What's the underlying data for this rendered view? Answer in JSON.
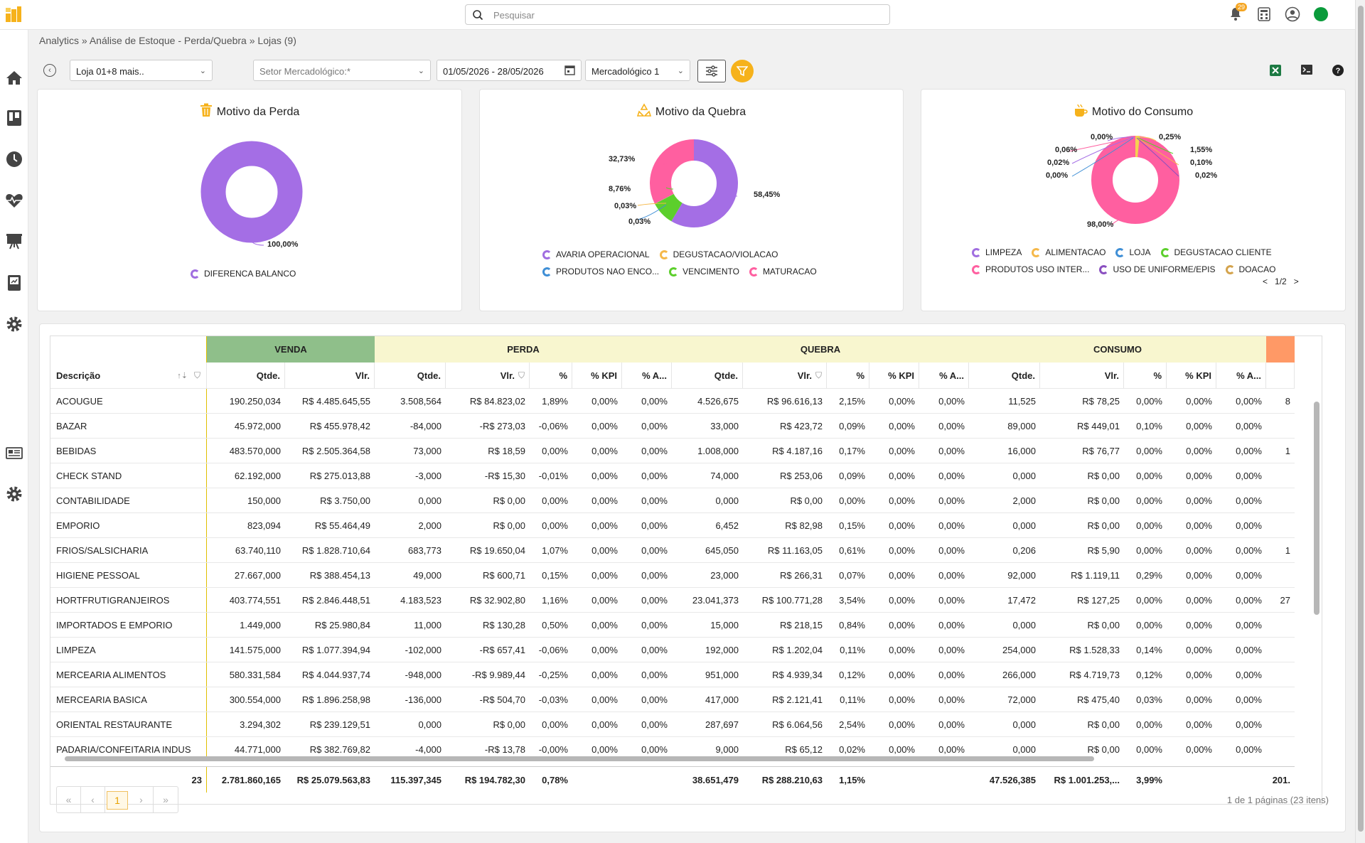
{
  "search": {
    "placeholder": "Pesquisar"
  },
  "notifications": {
    "count": "29"
  },
  "breadcrumb": "Analytics » Análise de Estoque - Perda/Quebra » Lojas (9)",
  "toolbar": {
    "store_filter": "Loja 01+8 mais..",
    "sector_filter": "Setor Mercadológico:*",
    "date_range": "01/05/2026 - 28/05/2026",
    "level_filter": "Mercadológico 1"
  },
  "cards": [
    {
      "title": "Motivo da Perda",
      "icon": "trash-icon",
      "legend": [
        {
          "label": "DIFERENCA BALANCO",
          "color": "#a06ee0"
        }
      ],
      "labels": [
        "100,00%"
      ]
    },
    {
      "title": "Motivo da Quebra",
      "icon": "recycle-icon",
      "legend": [
        {
          "label": "AVARIA OPERACIONAL",
          "color": "#a06ee0"
        },
        {
          "label": "DEGUSTACAO/VIOLACAO",
          "color": "#f5b84a"
        },
        {
          "label": "PRODUTOS NAO ENCO...",
          "color": "#3f8fd6"
        },
        {
          "label": "VENCIMENTO",
          "color": "#5ccf2c"
        },
        {
          "label": "MATURACAO",
          "color": "#ff5fa0"
        }
      ],
      "labels": [
        "32,73%",
        "58,45%",
        "8,76%",
        "0,03%",
        "0,03%"
      ]
    },
    {
      "title": "Motivo do Consumo",
      "icon": "coffee-icon",
      "legend": [
        {
          "label": "LIMPEZA",
          "color": "#a06ee0"
        },
        {
          "label": "ALIMENTACAO",
          "color": "#f5b84a"
        },
        {
          "label": "LOJA",
          "color": "#3f8fd6"
        },
        {
          "label": "DEGUSTACAO CLIENTE",
          "color": "#5ccf2c"
        },
        {
          "label": "PRODUTOS USO INTER...",
          "color": "#ff5fa0"
        },
        {
          "label": "USO DE UNIFORME/EPIS",
          "color": "#8a4fc0"
        },
        {
          "label": "DOACAO",
          "color": "#d4a34c"
        }
      ],
      "labels": [
        "0,00%",
        "0,25%",
        "0,06%",
        "1,55%",
        "0,02%",
        "0,10%",
        "0,00%",
        "0,02%",
        "98,00%"
      ],
      "legend_page": "1/2"
    }
  ],
  "table": {
    "groups": [
      "VENDA",
      "PERDA",
      "QUEBRA",
      "CONSUMO"
    ],
    "desc_header": "Descrição",
    "sub_headers": [
      "Qtde.",
      "Vlr.",
      "Qtde.",
      "Vlr.",
      "%",
      "% KPI",
      "% A...",
      "Qtde.",
      "Vlr.",
      "%",
      "% KPI",
      "% A...",
      "Qtde.",
      "Vlr.",
      "%",
      "% KPI",
      "% A...",
      ""
    ],
    "rows": [
      [
        "ACOUGUE",
        "190.250,034",
        "R$ 4.485.645,55",
        "3.508,564",
        "R$ 84.823,02",
        "1,89%",
        "0,00%",
        "0,00%",
        "4.526,675",
        "R$ 96.616,13",
        "2,15%",
        "0,00%",
        "0,00%",
        "11,525",
        "R$ 78,25",
        "0,00%",
        "0,00%",
        "0,00%",
        "8"
      ],
      [
        "BAZAR",
        "45.972,000",
        "R$ 455.978,42",
        "-84,000",
        "-R$ 273,03",
        "-0,06%",
        "0,00%",
        "0,00%",
        "33,000",
        "R$ 423,72",
        "0,09%",
        "0,00%",
        "0,00%",
        "89,000",
        "R$ 449,01",
        "0,10%",
        "0,00%",
        "0,00%",
        ""
      ],
      [
        "BEBIDAS",
        "483.570,000",
        "R$ 2.505.364,58",
        "73,000",
        "R$ 18,59",
        "0,00%",
        "0,00%",
        "0,00%",
        "1.008,000",
        "R$ 4.187,16",
        "0,17%",
        "0,00%",
        "0,00%",
        "16,000",
        "R$ 76,77",
        "0,00%",
        "0,00%",
        "0,00%",
        "1"
      ],
      [
        "CHECK STAND",
        "62.192,000",
        "R$ 275.013,88",
        "-3,000",
        "-R$ 15,30",
        "-0,01%",
        "0,00%",
        "0,00%",
        "74,000",
        "R$ 253,06",
        "0,09%",
        "0,00%",
        "0,00%",
        "0,000",
        "R$ 0,00",
        "0,00%",
        "0,00%",
        "0,00%",
        ""
      ],
      [
        "CONTABILIDADE",
        "150,000",
        "R$ 3.750,00",
        "0,000",
        "R$ 0,00",
        "0,00%",
        "0,00%",
        "0,00%",
        "0,000",
        "R$ 0,00",
        "0,00%",
        "0,00%",
        "0,00%",
        "2,000",
        "R$ 0,00",
        "0,00%",
        "0,00%",
        "0,00%",
        ""
      ],
      [
        "EMPORIO",
        "823,094",
        "R$ 55.464,49",
        "2,000",
        "R$ 0,00",
        "0,00%",
        "0,00%",
        "0,00%",
        "6,452",
        "R$ 82,98",
        "0,15%",
        "0,00%",
        "0,00%",
        "0,000",
        "R$ 0,00",
        "0,00%",
        "0,00%",
        "0,00%",
        ""
      ],
      [
        "FRIOS/SALSICHARIA",
        "63.740,110",
        "R$ 1.828.710,64",
        "683,773",
        "R$ 19.650,04",
        "1,07%",
        "0,00%",
        "0,00%",
        "645,050",
        "R$ 11.163,05",
        "0,61%",
        "0,00%",
        "0,00%",
        "0,206",
        "R$ 5,90",
        "0,00%",
        "0,00%",
        "0,00%",
        "1"
      ],
      [
        "HIGIENE PESSOAL",
        "27.667,000",
        "R$ 388.454,13",
        "49,000",
        "R$ 600,71",
        "0,15%",
        "0,00%",
        "0,00%",
        "23,000",
        "R$ 266,31",
        "0,07%",
        "0,00%",
        "0,00%",
        "92,000",
        "R$ 1.119,11",
        "0,29%",
        "0,00%",
        "0,00%",
        ""
      ],
      [
        "HORTFRUTIGRANJEIROS",
        "403.774,551",
        "R$ 2.846.448,51",
        "4.183,523",
        "R$ 32.902,80",
        "1,16%",
        "0,00%",
        "0,00%",
        "23.041,373",
        "R$ 100.771,28",
        "3,54%",
        "0,00%",
        "0,00%",
        "17,472",
        "R$ 127,25",
        "0,00%",
        "0,00%",
        "0,00%",
        "27"
      ],
      [
        "IMPORTADOS E EMPORIO",
        "1.449,000",
        "R$ 25.980,84",
        "11,000",
        "R$ 130,28",
        "0,50%",
        "0,00%",
        "0,00%",
        "15,000",
        "R$ 218,15",
        "0,84%",
        "0,00%",
        "0,00%",
        "0,000",
        "R$ 0,00",
        "0,00%",
        "0,00%",
        "0,00%",
        ""
      ],
      [
        "LIMPEZA",
        "141.575,000",
        "R$ 1.077.394,94",
        "-102,000",
        "-R$ 657,41",
        "-0,06%",
        "0,00%",
        "0,00%",
        "192,000",
        "R$ 1.202,04",
        "0,11%",
        "0,00%",
        "0,00%",
        "254,000",
        "R$ 1.528,33",
        "0,14%",
        "0,00%",
        "0,00%",
        ""
      ],
      [
        "MERCEARIA ALIMENTOS",
        "580.331,584",
        "R$ 4.044.937,74",
        "-948,000",
        "-R$ 9.989,44",
        "-0,25%",
        "0,00%",
        "0,00%",
        "951,000",
        "R$ 4.939,34",
        "0,12%",
        "0,00%",
        "0,00%",
        "266,000",
        "R$ 4.719,73",
        "0,12%",
        "0,00%",
        "0,00%",
        ""
      ],
      [
        "MERCEARIA BASICA",
        "300.554,000",
        "R$ 1.896.258,98",
        "-136,000",
        "-R$ 504,70",
        "-0,03%",
        "0,00%",
        "0,00%",
        "417,000",
        "R$ 2.121,41",
        "0,11%",
        "0,00%",
        "0,00%",
        "72,000",
        "R$ 475,40",
        "0,03%",
        "0,00%",
        "0,00%",
        ""
      ],
      [
        "ORIENTAL RESTAURANTE",
        "3.294,302",
        "R$ 239.129,51",
        "0,000",
        "R$ 0,00",
        "0,00%",
        "0,00%",
        "0,00%",
        "287,697",
        "R$ 6.064,56",
        "2,54%",
        "0,00%",
        "0,00%",
        "0,000",
        "R$ 0,00",
        "0,00%",
        "0,00%",
        "0,00%",
        ""
      ],
      [
        "PADARIA/CONFEITARIA INDUS",
        "44.771,000",
        "R$ 382.769,82",
        "-4,000",
        "-R$ 13,78",
        "-0,00%",
        "0,00%",
        "0,00%",
        "9,000",
        "R$ 65,12",
        "0,02%",
        "0,00%",
        "0,00%",
        "0,000",
        "R$ 0,00",
        "0,00%",
        "0,00%",
        "0,00%",
        ""
      ]
    ],
    "footer": [
      "23",
      "2.781.860,165",
      "R$ 25.079.563,83",
      "115.397,345",
      "R$ 194.782,30",
      "0,78%",
      "",
      "",
      "38.651,479",
      "R$ 288.210,63",
      "1,15%",
      "",
      "",
      "47.526,385",
      "R$ 1.001.253,...",
      "3,99%",
      "",
      "",
      "201."
    ]
  },
  "pager": {
    "first": "«",
    "prev": "‹",
    "current": "1",
    "next": "›",
    "last": "»",
    "info": "1 de 1 páginas (23 itens)"
  }
}
